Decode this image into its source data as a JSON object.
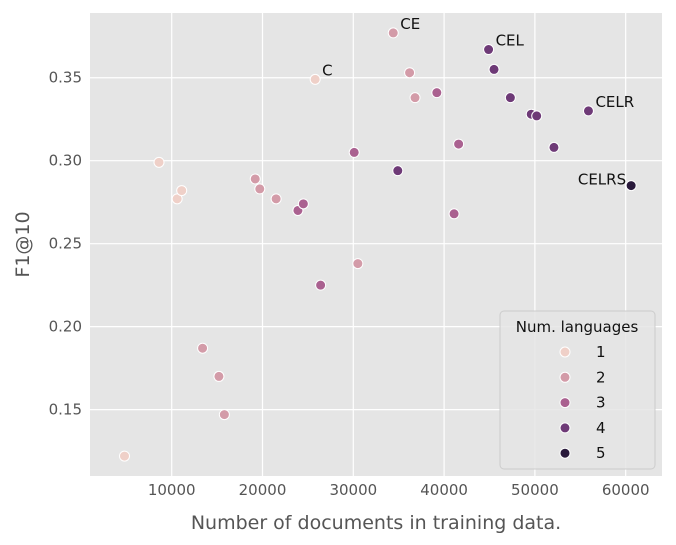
{
  "chart_data": {
    "type": "scatter",
    "xlabel": "Number of documents in training data.",
    "ylabel": "F1@10",
    "xlim": [
      1000,
      64000
    ],
    "ylim": [
      0.11,
      0.389
    ],
    "x_ticks": [
      10000,
      20000,
      30000,
      40000,
      50000,
      60000
    ],
    "x_tick_labels": [
      "10000",
      "20000",
      "30000",
      "40000",
      "50000",
      "60000"
    ],
    "y_ticks": [
      0.15,
      0.2,
      0.25,
      0.3,
      0.35
    ],
    "y_tick_labels": [
      "0.15",
      "0.20",
      "0.25",
      "0.30",
      "0.35"
    ],
    "grid": true,
    "background": "#e5e5e5",
    "grid_color": "#ffffff",
    "legend": {
      "title": "Num. languages",
      "placement": "bottom-right",
      "entries": [
        {
          "label": "1",
          "color": "#efd0c8"
        },
        {
          "label": "2",
          "color": "#d39ba8"
        },
        {
          "label": "3",
          "color": "#aa6190"
        },
        {
          "label": "4",
          "color": "#6e3a77"
        },
        {
          "label": "5",
          "color": "#2a1a3c"
        }
      ]
    },
    "points": [
      {
        "x": 4800,
        "y": 0.122,
        "n": 1
      },
      {
        "x": 8600,
        "y": 0.299,
        "n": 1
      },
      {
        "x": 10600,
        "y": 0.277,
        "n": 1
      },
      {
        "x": 11100,
        "y": 0.282,
        "n": 1
      },
      {
        "x": 25800,
        "y": 0.349,
        "n": 1,
        "label": "C"
      },
      {
        "x": 13400,
        "y": 0.187,
        "n": 2
      },
      {
        "x": 15200,
        "y": 0.17,
        "n": 2
      },
      {
        "x": 15800,
        "y": 0.147,
        "n": 2
      },
      {
        "x": 19200,
        "y": 0.289,
        "n": 2
      },
      {
        "x": 19700,
        "y": 0.283,
        "n": 2
      },
      {
        "x": 21500,
        "y": 0.277,
        "n": 2
      },
      {
        "x": 30500,
        "y": 0.238,
        "n": 2
      },
      {
        "x": 34400,
        "y": 0.377,
        "n": 2,
        "label": "CE"
      },
      {
        "x": 36200,
        "y": 0.353,
        "n": 2
      },
      {
        "x": 36800,
        "y": 0.338,
        "n": 2
      },
      {
        "x": 23900,
        "y": 0.27,
        "n": 3
      },
      {
        "x": 24500,
        "y": 0.274,
        "n": 3
      },
      {
        "x": 26400,
        "y": 0.225,
        "n": 3
      },
      {
        "x": 30100,
        "y": 0.305,
        "n": 3
      },
      {
        "x": 39200,
        "y": 0.341,
        "n": 3
      },
      {
        "x": 41100,
        "y": 0.268,
        "n": 3
      },
      {
        "x": 41600,
        "y": 0.31,
        "n": 3
      },
      {
        "x": 34900,
        "y": 0.294,
        "n": 4
      },
      {
        "x": 44900,
        "y": 0.367,
        "n": 4,
        "label": "CEL"
      },
      {
        "x": 45500,
        "y": 0.355,
        "n": 4
      },
      {
        "x": 47300,
        "y": 0.338,
        "n": 4
      },
      {
        "x": 49600,
        "y": 0.328,
        "n": 4
      },
      {
        "x": 50200,
        "y": 0.327,
        "n": 4
      },
      {
        "x": 52100,
        "y": 0.308,
        "n": 4
      },
      {
        "x": 55900,
        "y": 0.33,
        "n": 4,
        "label": "CELR"
      },
      {
        "x": 60600,
        "y": 0.285,
        "n": 5,
        "label": "CELRS"
      }
    ]
  }
}
